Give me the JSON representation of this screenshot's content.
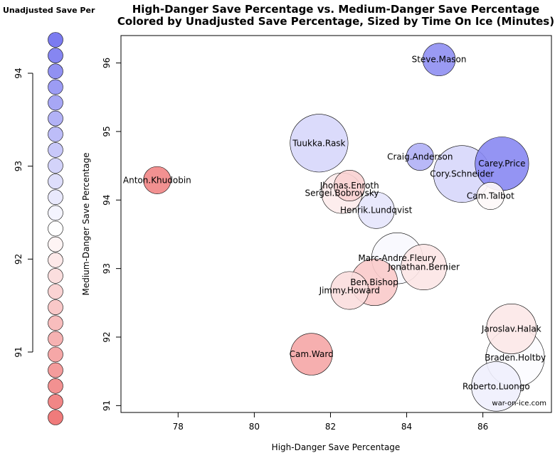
{
  "chart_data": {
    "type": "scatter",
    "title": "High-Danger Save Percentage vs. Medium-Danger Save Percentage",
    "subtitle": "Colored by Unadjusted Save Percentage, Sized by Time On Ice (Minutes)",
    "xlabel": "High-Danger Save Percentage",
    "ylabel": "Medium-Danger Save Percentage",
    "xlim": [
      76.5,
      87.8
    ],
    "ylim": [
      90.9,
      96.4
    ],
    "xticks": [
      "78",
      "80",
      "82",
      "84",
      "86"
    ],
    "yticks": [
      "91",
      "92",
      "93",
      "94",
      "95",
      "96"
    ],
    "watermark": "war-on-ice.com",
    "points": [
      {
        "label": "Steve.Mason",
        "x": 84.85,
        "y": 96.05,
        "sv": 94.1,
        "toi": 1000
      },
      {
        "label": "Tuukka.Rask",
        "x": 81.7,
        "y": 94.83,
        "sv": 93.0,
        "toi": 3150
      },
      {
        "label": "Craig.Anderson",
        "x": 84.35,
        "y": 94.63,
        "sv": 93.6,
        "toi": 700
      },
      {
        "label": "Carey.Price",
        "x": 86.5,
        "y": 94.53,
        "sv": 94.2,
        "toi": 2700
      },
      {
        "label": "Cory.Schneider",
        "x": 85.45,
        "y": 94.38,
        "sv": 93.0,
        "toi": 3050
      },
      {
        "label": "Anton.Khudobin",
        "x": 77.45,
        "y": 94.29,
        "sv": 90.55,
        "toi": 700
      },
      {
        "label": "Jhonas.Enroth",
        "x": 82.5,
        "y": 94.21,
        "sv": 91.7,
        "toi": 900
      },
      {
        "label": "Sergei.Bobrovsky",
        "x": 82.3,
        "y": 94.1,
        "sv": 92.1,
        "toi": 1550
      },
      {
        "label": "Cam.Talbot",
        "x": 86.2,
        "y": 94.06,
        "sv": 92.3,
        "toi": 700
      },
      {
        "label": "Henrik.Lundqvist",
        "x": 83.2,
        "y": 93.85,
        "sv": 92.8,
        "toi": 1250
      },
      {
        "label": "Marc-Andre.Fleury",
        "x": 83.75,
        "y": 93.15,
        "sv": 92.5,
        "toi": 2450
      },
      {
        "label": "Jonathan.Bernier",
        "x": 84.45,
        "y": 93.02,
        "sv": 92.0,
        "toi": 1950
      },
      {
        "label": "Ben.Bishop",
        "x": 83.15,
        "y": 92.8,
        "sv": 91.6,
        "toi": 2050
      },
      {
        "label": "Jimmy.Howard",
        "x": 82.5,
        "y": 92.68,
        "sv": 91.9,
        "toi": 1350
      },
      {
        "label": "Jaroslav.Halak",
        "x": 86.75,
        "y": 92.12,
        "sv": 92.05,
        "toi": 2350
      },
      {
        "label": "Cam.Ward",
        "x": 81.5,
        "y": 91.75,
        "sv": 91.05,
        "toi": 1650
      },
      {
        "label": "Braden.Holtby",
        "x": 86.85,
        "y": 91.7,
        "sv": 92.45,
        "toi": 3200
      },
      {
        "label": "Roberto.Luongo",
        "x": 86.35,
        "y": 91.28,
        "sv": 92.65,
        "toi": 2300
      }
    ],
    "legend": {
      "title": "Unadjusted Save Per",
      "ticks": [
        "94",
        "93",
        "92",
        "91"
      ],
      "range": [
        90.4,
        94.4
      ],
      "swatch_count": 25,
      "top_color": "#7b7bf0",
      "mid_color": "#ffffff",
      "bottom_color": "#f07b7b"
    }
  }
}
